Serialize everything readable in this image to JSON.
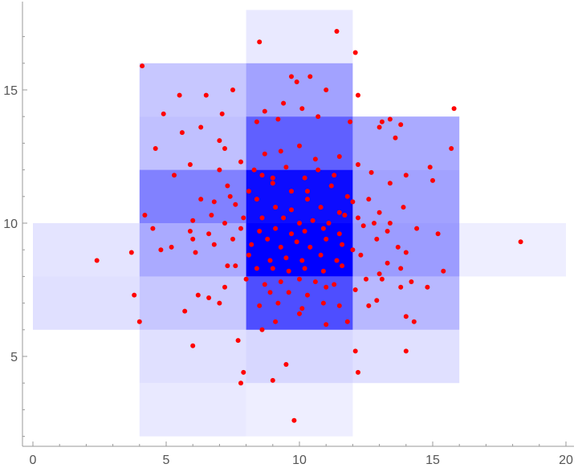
{
  "chart_data": {
    "type": "heatmap",
    "subtype": "density-histogram-with-scatter",
    "title": "",
    "xlabel": "",
    "ylabel": "",
    "xlim": [
      -0.4,
      20.2
    ],
    "ylim": [
      1.6,
      17.9
    ],
    "x_ticks": [
      0,
      5,
      10,
      15,
      20
    ],
    "y_ticks": [
      5,
      10,
      15
    ],
    "bin_size": [
      4,
      2
    ],
    "colors": {
      "bin_max": "#0000ff",
      "bin_min": "#ffffff",
      "points": "#ff0000",
      "tick_text": "#555555"
    },
    "bins": [
      {
        "x0": 8,
        "y0": 16,
        "count": 2
      },
      {
        "x0": 4,
        "y0": 14,
        "count": 10
      },
      {
        "x0": 8,
        "y0": 14,
        "count": 20
      },
      {
        "x0": 4,
        "y0": 12,
        "count": 12
      },
      {
        "x0": 8,
        "y0": 12,
        "count": 40
      },
      {
        "x0": 12,
        "y0": 12,
        "count": 18
      },
      {
        "x0": 4,
        "y0": 10,
        "count": 30
      },
      {
        "x0": 8,
        "y0": 10,
        "count": 68
      },
      {
        "x0": 12,
        "y0": 10,
        "count": 20
      },
      {
        "x0": 0,
        "y0": 8,
        "count": 3
      },
      {
        "x0": 4,
        "y0": 8,
        "count": 18
      },
      {
        "x0": 8,
        "y0": 8,
        "count": 72
      },
      {
        "x0": 12,
        "y0": 8,
        "count": 22
      },
      {
        "x0": 16,
        "y0": 8,
        "count": 1
      },
      {
        "x0": 0,
        "y0": 6,
        "count": 4
      },
      {
        "x0": 4,
        "y0": 6,
        "count": 10
      },
      {
        "x0": 8,
        "y0": 6,
        "count": 46
      },
      {
        "x0": 12,
        "y0": 6,
        "count": 14
      },
      {
        "x0": 4,
        "y0": 4,
        "count": 4
      },
      {
        "x0": 8,
        "y0": 4,
        "count": 6
      },
      {
        "x0": 12,
        "y0": 4,
        "count": 4
      },
      {
        "x0": 4,
        "y0": 2,
        "count": 2
      },
      {
        "x0": 8,
        "y0": 2,
        "count": 1
      }
    ],
    "points": [
      [
        8.5,
        16.8
      ],
      [
        11.4,
        17.2
      ],
      [
        12.1,
        16.4
      ],
      [
        4.1,
        15.9
      ],
      [
        5.5,
        14.8
      ],
      [
        6.5,
        14.8
      ],
      [
        7.5,
        15.0
      ],
      [
        9.7,
        15.5
      ],
      [
        10.4,
        15.5
      ],
      [
        9.9,
        15.3
      ],
      [
        11.0,
        15.0
      ],
      [
        4.9,
        14.1
      ],
      [
        7.1,
        14.1
      ],
      [
        8.7,
        14.2
      ],
      [
        9.4,
        14.5
      ],
      [
        10.1,
        14.3
      ],
      [
        12.2,
        14.8
      ],
      [
        15.8,
        14.3
      ],
      [
        5.6,
        13.4
      ],
      [
        6.3,
        13.6
      ],
      [
        8.4,
        13.8
      ],
      [
        9.2,
        13.9
      ],
      [
        10.7,
        14.0
      ],
      [
        11.9,
        13.8
      ],
      [
        13.0,
        13.6
      ],
      [
        13.4,
        13.9
      ],
      [
        13.8,
        13.7
      ],
      [
        13.1,
        13.8
      ],
      [
        4.6,
        12.8
      ],
      [
        5.9,
        12.2
      ],
      [
        7.0,
        13.1
      ],
      [
        7.2,
        12.8
      ],
      [
        7.8,
        12.3
      ],
      [
        8.7,
        12.6
      ],
      [
        9.3,
        12.7
      ],
      [
        10.0,
        12.9
      ],
      [
        10.6,
        12.4
      ],
      [
        11.5,
        12.5
      ],
      [
        13.6,
        13.2
      ],
      [
        15.7,
        12.8
      ],
      [
        5.3,
        11.8
      ],
      [
        7.0,
        12.0
      ],
      [
        8.3,
        12.0
      ],
      [
        8.6,
        11.8
      ],
      [
        9.0,
        11.7
      ],
      [
        9.5,
        12.1
      ],
      [
        10.2,
        11.7
      ],
      [
        10.7,
        12.0
      ],
      [
        11.3,
        11.8
      ],
      [
        12.2,
        12.2
      ],
      [
        12.7,
        11.9
      ],
      [
        14.9,
        12.1
      ],
      [
        7.3,
        11.4
      ],
      [
        8.1,
        11.2
      ],
      [
        9.0,
        11.5
      ],
      [
        9.7,
        11.2
      ],
      [
        10.3,
        11.2
      ],
      [
        11.2,
        11.4
      ],
      [
        11.8,
        11.0
      ],
      [
        13.4,
        11.5
      ],
      [
        14.0,
        11.8
      ],
      [
        15.0,
        11.6
      ],
      [
        6.3,
        10.9
      ],
      [
        6.8,
        10.8
      ],
      [
        7.4,
        11.0
      ],
      [
        7.6,
        10.7
      ],
      [
        8.4,
        10.9
      ],
      [
        9.1,
        10.6
      ],
      [
        9.7,
        10.5
      ],
      [
        10.3,
        10.9
      ],
      [
        10.8,
        10.6
      ],
      [
        11.5,
        10.4
      ],
      [
        12.0,
        10.8
      ],
      [
        12.6,
        10.9
      ],
      [
        13.0,
        10.4
      ],
      [
        13.9,
        10.6
      ],
      [
        4.2,
        10.3
      ],
      [
        6.0,
        10.1
      ],
      [
        6.7,
        10.3
      ],
      [
        7.2,
        10.0
      ],
      [
        7.9,
        10.2
      ],
      [
        8.6,
        10.2
      ],
      [
        9.4,
        10.2
      ],
      [
        10.0,
        10.0
      ],
      [
        10.5,
        10.1
      ],
      [
        11.1,
        10.0
      ],
      [
        11.7,
        10.3
      ],
      [
        12.2,
        10.2
      ],
      [
        12.8,
        10.0
      ],
      [
        13.4,
        10.0
      ],
      [
        4.5,
        9.8
      ],
      [
        5.9,
        9.7
      ],
      [
        6.6,
        9.6
      ],
      [
        7.8,
        9.8
      ],
      [
        8.5,
        9.7
      ],
      [
        9.1,
        9.8
      ],
      [
        9.7,
        9.6
      ],
      [
        10.2,
        9.7
      ],
      [
        10.9,
        9.8
      ],
      [
        11.5,
        9.6
      ],
      [
        12.4,
        9.9
      ],
      [
        13.3,
        9.7
      ],
      [
        14.4,
        9.8
      ],
      [
        18.3,
        9.3
      ],
      [
        6.0,
        9.4
      ],
      [
        6.8,
        9.2
      ],
      [
        7.5,
        9.4
      ],
      [
        8.2,
        9.2
      ],
      [
        8.8,
        9.4
      ],
      [
        9.3,
        9.1
      ],
      [
        9.9,
        9.3
      ],
      [
        10.4,
        9.1
      ],
      [
        11.0,
        9.4
      ],
      [
        11.6,
        9.2
      ],
      [
        12.0,
        9.0
      ],
      [
        12.9,
        9.4
      ],
      [
        13.7,
        9.1
      ],
      [
        15.2,
        9.6
      ],
      [
        4.8,
        9.0
      ],
      [
        5.2,
        9.1
      ],
      [
        6.1,
        8.9
      ],
      [
        8.1,
        8.8
      ],
      [
        8.9,
        8.6
      ],
      [
        9.5,
        8.7
      ],
      [
        10.1,
        8.6
      ],
      [
        10.8,
        8.8
      ],
      [
        11.4,
        8.6
      ],
      [
        12.3,
        8.8
      ],
      [
        13.3,
        8.5
      ],
      [
        14.0,
        8.9
      ],
      [
        2.4,
        8.6
      ],
      [
        3.7,
        8.9
      ],
      [
        7.3,
        8.4
      ],
      [
        7.6,
        8.4
      ],
      [
        8.4,
        8.3
      ],
      [
        9.0,
        8.3
      ],
      [
        9.6,
        8.2
      ],
      [
        10.2,
        8.3
      ],
      [
        10.9,
        8.2
      ],
      [
        11.6,
        8.4
      ],
      [
        13.0,
        8.1
      ],
      [
        13.8,
        8.3
      ],
      [
        15.4,
        8.2
      ],
      [
        8.0,
        7.9
      ],
      [
        8.7,
        7.7
      ],
      [
        9.3,
        7.8
      ],
      [
        10.0,
        7.9
      ],
      [
        10.6,
        7.8
      ],
      [
        11.3,
        7.7
      ],
      [
        12.5,
        7.9
      ],
      [
        13.1,
        7.9
      ],
      [
        14.2,
        7.8
      ],
      [
        3.8,
        7.3
      ],
      [
        6.2,
        7.3
      ],
      [
        6.6,
        7.2
      ],
      [
        7.2,
        7.6
      ],
      [
        8.9,
        7.4
      ],
      [
        9.6,
        7.4
      ],
      [
        10.3,
        7.3
      ],
      [
        11.0,
        7.6
      ],
      [
        12.1,
        7.5
      ],
      [
        12.9,
        7.1
      ],
      [
        13.8,
        7.6
      ],
      [
        14.8,
        7.6
      ],
      [
        5.7,
        6.7
      ],
      [
        7.0,
        7.0
      ],
      [
        8.5,
        6.9
      ],
      [
        9.2,
        7.0
      ],
      [
        10.1,
        6.8
      ],
      [
        10.9,
        7.0
      ],
      [
        11.5,
        6.9
      ],
      [
        12.6,
        6.9
      ],
      [
        14.0,
        6.5
      ],
      [
        14.3,
        6.3
      ],
      [
        4.0,
        6.3
      ],
      [
        8.6,
        6.0
      ],
      [
        9.1,
        6.3
      ],
      [
        10.0,
        6.6
      ],
      [
        11.0,
        6.2
      ],
      [
        11.8,
        6.3
      ],
      [
        6.0,
        5.4
      ],
      [
        7.7,
        5.6
      ],
      [
        12.1,
        5.2
      ],
      [
        14.0,
        5.2
      ],
      [
        9.5,
        4.7
      ],
      [
        7.9,
        4.4
      ],
      [
        12.2,
        4.4
      ],
      [
        7.8,
        4.0
      ],
      [
        9.0,
        4.1
      ],
      [
        9.8,
        2.6
      ]
    ]
  }
}
